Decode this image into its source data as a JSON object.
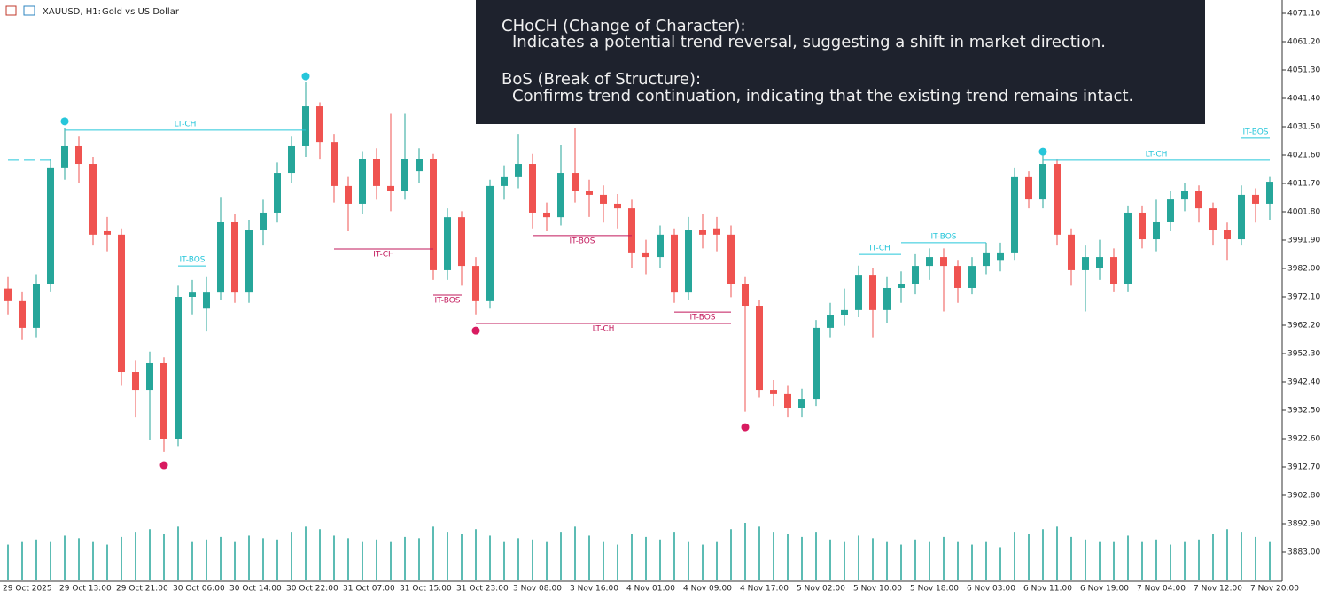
{
  "chart_data": {
    "type": "candlestick",
    "title": "XAUUSD, H1:",
    "subtitle": "Gold vs US Dollar",
    "up_color": "#26a69a",
    "down_color": "#ef5350",
    "volume_color": "#26a69a",
    "categories": [
      "29 Oct 2025",
      null,
      null,
      null,
      "29 Oct 13:00",
      null,
      null,
      null,
      "29 Oct 21:00",
      null,
      null,
      null,
      "30 Oct 06:00",
      null,
      null,
      null,
      "30 Oct 14:00",
      null,
      null,
      null,
      "30 Oct 22:00",
      null,
      null,
      null,
      "31 Oct 07:00",
      null,
      null,
      null,
      "31 Oct 15:00",
      null,
      null,
      null,
      "31 Oct 23:00",
      null,
      null,
      null,
      "3 Nov 08:00",
      null,
      null,
      null,
      "3 Nov 16:00",
      null,
      null,
      null,
      "4 Nov 01:00",
      null,
      null,
      null,
      "4 Nov 09:00",
      null,
      null,
      null,
      "4 Nov 17:00",
      null,
      null,
      null,
      "5 Nov 02:00",
      null,
      null,
      null,
      "5 Nov 10:00",
      null,
      null,
      null,
      "5 Nov 18:00",
      null,
      null,
      null,
      "6 Nov 03:00",
      null,
      null,
      null,
      "6 Nov 11:00",
      null,
      null,
      null,
      "6 Nov 19:00",
      null,
      null,
      null,
      "7 Nov 04:00",
      null,
      null,
      null,
      "7 Nov 12:00",
      null,
      null,
      null,
      "7 Nov 20:00",
      null
    ],
    "open": [
      3975.0,
      3970.6,
      3961.3,
      3976.7,
      4017.0,
      4024.7,
      4018.5,
      3995.0,
      3993.8,
      3945.8,
      3939.6,
      3948.9,
      3922.6,
      3972.1,
      3968.0,
      3973.6,
      3998.4,
      3973.6,
      3995.3,
      4001.5,
      4015.4,
      4024.7,
      4038.6,
      4026.2,
      4010.8,
      4004.6,
      4020.1,
      4010.8,
      4009.2,
      4016.0,
      4020.1,
      3981.4,
      3999.9,
      3982.9,
      3970.6,
      4010.8,
      4013.9,
      4018.5,
      4001.5,
      3999.9,
      4015.4,
      4009.2,
      4007.7,
      4004.6,
      4003.0,
      3987.6,
      3986.0,
      3993.8,
      3973.6,
      3995.3,
      3996.0,
      3993.8,
      3976.7,
      3969.0,
      3939.6,
      3938.1,
      3933.4,
      3936.5,
      3961.3,
      3965.9,
      3967.5,
      3979.8,
      3967.5,
      3975.2,
      3976.7,
      3982.9,
      3986.0,
      3982.9,
      3975.2,
      3982.9,
      3985.0,
      3987.6,
      4013.9,
      4006.1,
      4018.5,
      3993.8,
      3981.4,
      3982.0,
      3986.0,
      3976.7,
      4001.5,
      3992.2,
      3998.4,
      4006.1,
      4009.2,
      4003.0,
      3995.3,
      3992.2,
      4007.7,
      4004.6
    ],
    "high": [
      3979,
      3974,
      3980,
      4020,
      4031,
      4028,
      4021,
      4000,
      3996,
      3950,
      3953,
      3951,
      3976,
      3978,
      3979,
      4007,
      4001,
      3999,
      4006,
      4019,
      4028,
      4047,
      4040,
      4029,
      4014,
      4023,
      4024,
      4036,
      4036,
      4024,
      4022,
      4003,
      4002,
      3986,
      4013,
      4018,
      4029,
      4022,
      4005,
      4025,
      4031,
      4013,
      4011,
      4008,
      4006,
      3992,
      3997,
      3996,
      4000,
      4001,
      4000,
      3997,
      3979,
      3971,
      3943,
      3941,
      3940,
      3964,
      3970,
      3975,
      3983,
      3982,
      3979,
      3981,
      3987,
      3989,
      3989,
      3985,
      3986,
      3991,
      3991,
      4017,
      4016,
      4022,
      4020,
      3996,
      3990,
      3992,
      3989,
      4004,
      4004,
      4006,
      4009,
      4012,
      4011,
      4005,
      3998,
      4011,
      4010,
      4014
    ],
    "low": [
      3966,
      3957,
      3958,
      3974,
      4013,
      4012,
      3990,
      3988,
      3941,
      3930,
      3922,
      3918,
      3920,
      3966,
      3960,
      3971,
      3970,
      3970,
      3990,
      3998,
      4012,
      4021,
      4020,
      4005,
      3995,
      4001,
      4006,
      4002,
      4006,
      4012,
      3978,
      3978,
      3976,
      3966,
      3968,
      4006,
      4010,
      3996,
      3995,
      3997,
      4005,
      4000,
      3998,
      3996,
      3982,
      3980,
      3982,
      3970,
      3971,
      3989,
      3988,
      3972,
      3932,
      3937,
      3934,
      3930,
      3930,
      3934,
      3958,
      3962,
      3965,
      3958,
      3963,
      3970,
      3973,
      3978,
      3967,
      3970,
      3973,
      3980,
      3981,
      3985,
      4003,
      4003,
      3990,
      3976,
      3967,
      3978,
      3974,
      3974,
      3989,
      3988,
      3995,
      4002,
      3998,
      3990,
      3985,
      3990,
      3998,
      3999
    ],
    "close": [
      3970.6,
      3961.3,
      3976.7,
      4017.0,
      4024.7,
      4018.5,
      3993.8,
      3993.8,
      3945.8,
      3939.6,
      3948.9,
      3922.6,
      3972.1,
      3973.6,
      3973.6,
      3998.4,
      3973.6,
      3995.3,
      4001.5,
      4015.4,
      4024.7,
      4038.6,
      4026.2,
      4010.8,
      4004.6,
      4020.1,
      4010.8,
      4009.2,
      4020.1,
      4020.1,
      3981.4,
      3999.9,
      3982.9,
      3970.6,
      4010.8,
      4013.9,
      4018.5,
      4001.5,
      3999.9,
      4015.4,
      4009.2,
      4007.7,
      4004.6,
      4003.0,
      3987.6,
      3986.0,
      3993.8,
      3973.6,
      3995.3,
      3993.8,
      3993.8,
      3976.7,
      3969.0,
      3939.6,
      3938.1,
      3933.4,
      3936.5,
      3961.3,
      3965.9,
      3967.5,
      3979.8,
      3967.5,
      3975.2,
      3976.7,
      3982.9,
      3986.0,
      3982.9,
      3975.2,
      3982.9,
      3987.6,
      3987.6,
      4013.9,
      4006.1,
      4018.5,
      3993.8,
      3981.4,
      3986.0,
      3986.0,
      3976.7,
      4001.5,
      3992.2,
      3998.4,
      4006.1,
      4009.2,
      4003.0,
      3995.3,
      3992.2,
      4007.7,
      4004.6,
      4012.3
    ],
    "volume": [
      28,
      30,
      32,
      30,
      35,
      33,
      30,
      28,
      34,
      38,
      40,
      36,
      42,
      30,
      32,
      34,
      30,
      35,
      33,
      32,
      38,
      42,
      40,
      35,
      33,
      30,
      32,
      30,
      34,
      33,
      42,
      38,
      36,
      40,
      35,
      30,
      33,
      32,
      30,
      38,
      42,
      35,
      30,
      28,
      36,
      34,
      32,
      38,
      30,
      28,
      30,
      40,
      45,
      42,
      38,
      36,
      34,
      38,
      32,
      30,
      35,
      33,
      30,
      28,
      32,
      30,
      34,
      30,
      28,
      30,
      26,
      38,
      36,
      40,
      42,
      34,
      32,
      30,
      30,
      35,
      30,
      32,
      28,
      30,
      32,
      36,
      40,
      38,
      34,
      30
    ],
    "ylim": [
      3873.1,
      4075.74
    ],
    "yticks": [
      {
        "value": 4071.1,
        "label": "4071.10"
      },
      {
        "value": 4061.2,
        "label": "4061.20"
      },
      {
        "value": 4051.3,
        "label": "4051.30"
      },
      {
        "value": 4041.4,
        "label": "4041.40"
      },
      {
        "value": 4031.5,
        "label": "4031.50"
      },
      {
        "value": 4021.6,
        "label": "4021.60"
      },
      {
        "value": 4011.7,
        "label": "4011.70"
      },
      {
        "value": 4001.8,
        "label": "4001.80"
      },
      {
        "value": 3991.9,
        "label": "3991.90"
      },
      {
        "value": 3982,
        "label": "3982.00"
      },
      {
        "value": 3972.1,
        "label": "3972.10"
      },
      {
        "value": 3962.2,
        "label": "3962.20"
      },
      {
        "value": 3952.3,
        "label": "3952.30"
      },
      {
        "value": 3942.4,
        "label": "3942.40"
      },
      {
        "value": 3932.5,
        "label": "3932.50"
      },
      {
        "value": 3922.6,
        "label": "3922.60"
      },
      {
        "value": 3912.7,
        "label": "3912.70"
      },
      {
        "value": 3902.8,
        "label": "3902.80"
      },
      {
        "value": 3892.9,
        "label": "3892.90"
      },
      {
        "value": 3883,
        "label": "3883.00"
      }
    ],
    "structures": [
      {
        "color": "#26c6da",
        "from": 0,
        "to": 3,
        "price": 4019.8,
        "dashed": true
      },
      {
        "label": "LT-CH",
        "color": "#26c6da",
        "from": 4,
        "to": 21,
        "price": 4030.3,
        "label_position": "above"
      },
      {
        "label": "IT-BOS",
        "color": "#26c6da",
        "from": 12,
        "to": 14,
        "price": 3982.9,
        "label_position": "above"
      },
      {
        "label": "IT-CH",
        "color": "#c2185b",
        "from": 23,
        "to": 30,
        "price": 3988.8,
        "label_position": "below"
      },
      {
        "label": "IT-BOS",
        "color": "#c2185b",
        "from": 30,
        "to": 32,
        "price": 3972.7,
        "label_position": "below"
      },
      {
        "label": "LT-CH",
        "color": "#c2185b",
        "from": 33,
        "to": 51,
        "price": 3962.8,
        "label_position": "below"
      },
      {
        "label": "IT-BOS",
        "color": "#c2185b",
        "from": 37,
        "to": 44,
        "price": 3993.5,
        "label_position": "below"
      },
      {
        "label": "IT-BOS",
        "color": "#c2185b",
        "from": 47,
        "to": 51,
        "price": 3966.8,
        "label_position": "below"
      },
      {
        "label": "IT-CH",
        "color": "#26c6da",
        "from": 60,
        "to": 63,
        "price": 3986.9,
        "label_position": "above"
      },
      {
        "label": "IT-BOS",
        "color": "#26c6da",
        "from": 63,
        "to": 69,
        "price": 3991.0,
        "label_position": "above"
      },
      {
        "label": "LT-CH",
        "color": "#26c6da",
        "from": 73,
        "to": 89,
        "price": 4019.8,
        "label_position": "above"
      },
      {
        "label": "IT-BOS",
        "color": "#26c6da",
        "from": 87,
        "to": 89,
        "price": 4027.5,
        "label_position": "above"
      }
    ],
    "markers": [
      {
        "index": 4,
        "price": 4033.4,
        "color": "#26c6da"
      },
      {
        "index": 21,
        "price": 4049.1,
        "color": "#26c6da"
      },
      {
        "index": 11,
        "price": 3913.3,
        "color": "#d81b60"
      },
      {
        "index": 33,
        "price": 3960.3,
        "color": "#d81b60"
      },
      {
        "index": 52,
        "price": 3926.6,
        "color": "#d81b60"
      },
      {
        "index": 73,
        "price": 4022.8,
        "color": "#26c6da"
      }
    ],
    "info_box": {
      "choch_title": "CHoCH (Change of Character):",
      "choch_text": "Indicates a potential trend reversal, suggesting a shift in market direction.",
      "bos_title": "BoS (Break of Structure):",
      "bos_text": "Confirms trend continuation, indicating that the existing trend remains intact."
    }
  }
}
